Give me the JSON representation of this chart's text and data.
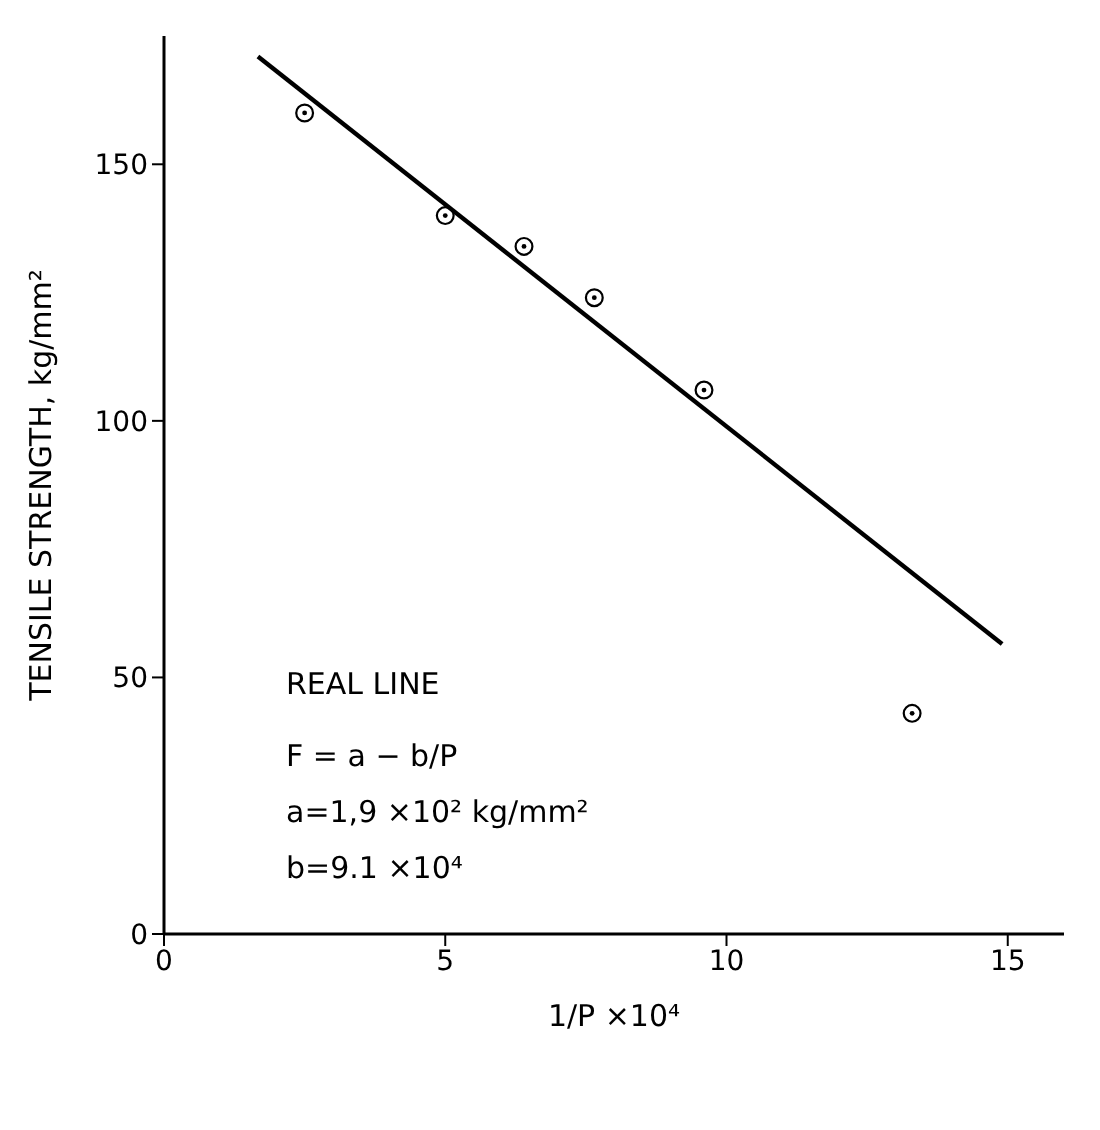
{
  "chart_data": {
    "type": "scatter",
    "xlabel": "1/P ×10⁴",
    "ylabel": "TENSILE STRENGTH, kg/mm²",
    "xlim": [
      0,
      16
    ],
    "xticks": [
      0,
      5,
      10,
      15
    ],
    "ylim": [
      0,
      175
    ],
    "yticks": [
      0,
      50,
      100,
      150
    ],
    "grid": false,
    "legend": false,
    "marker": "circle",
    "series": [
      {
        "color": "#000000",
        "x": [
          2.5,
          5,
          6.4,
          7.65,
          9.6,
          13.3
        ],
        "values": [
          160,
          140,
          134,
          124,
          106,
          43
        ]
      },
      {
        "type": "line",
        "color": "#000000",
        "marker": "none",
        "line_style": "solid",
        "x": [
          1.67,
          14.9
        ],
        "values": [
          171,
          56.5
        ]
      }
    ],
    "annotations": [
      "REAL LINE",
      "F = a − b/P",
      "a=1,9 ×10² kg/mm²",
      "b=9.1 ×10⁴"
    ]
  }
}
